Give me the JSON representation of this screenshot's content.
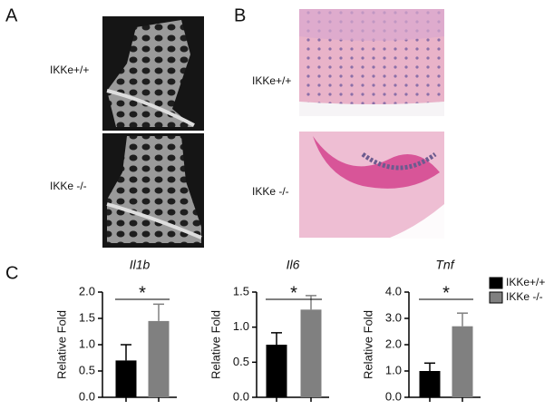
{
  "panel_labels": [
    "A",
    "B",
    "C"
  ],
  "image_labels": {
    "wild_type": "IKKe+/+",
    "knockout": "IKKe -/-"
  },
  "legend": [
    {
      "name": "IKKe+/+",
      "color": "#000000"
    },
    {
      "name": "IKKe -/-",
      "color": "#808080"
    }
  ],
  "chart_data": [
    {
      "type": "bar",
      "title": "Il1b",
      "y_label": "Relative Fold",
      "annotation": "*",
      "values": [
        0.7,
        1.45
      ],
      "errors": [
        0.3,
        0.32
      ],
      "ylim": [
        0,
        2
      ],
      "yticks": [
        {
          "value": 0,
          "label": "0.0"
        },
        {
          "value": 0.5,
          "label": "0.5"
        },
        {
          "value": 1,
          "label": "1.0"
        },
        {
          "value": 1.5,
          "label": "1.5"
        },
        {
          "value": 2,
          "label": "2.0"
        }
      ]
    },
    {
      "type": "bar",
      "title": "Il6",
      "y_label": "Relative Fold",
      "annotation": "*",
      "values": [
        0.75,
        1.25
      ],
      "errors": [
        0.17,
        0.2
      ],
      "ylim": [
        0,
        1.5
      ],
      "yticks": [
        {
          "value": 0,
          "label": "0.0"
        },
        {
          "value": 0.5,
          "label": "0.5"
        },
        {
          "value": 1,
          "label": "1.0"
        },
        {
          "value": 1.5,
          "label": "1.5"
        }
      ]
    },
    {
      "type": "bar",
      "title": "Tnf",
      "y_label": "Relative Fold",
      "annotation": "*",
      "values": [
        1.0,
        2.7
      ],
      "errors": [
        0.3,
        0.5
      ],
      "ylim": [
        0,
        4
      ],
      "yticks": [
        {
          "value": 0,
          "label": "0.0"
        },
        {
          "value": 1,
          "label": "1.0"
        },
        {
          "value": 2,
          "label": "2.0"
        },
        {
          "value": 3,
          "label": "3.0"
        },
        {
          "value": 4,
          "label": "4.0"
        }
      ]
    }
  ]
}
